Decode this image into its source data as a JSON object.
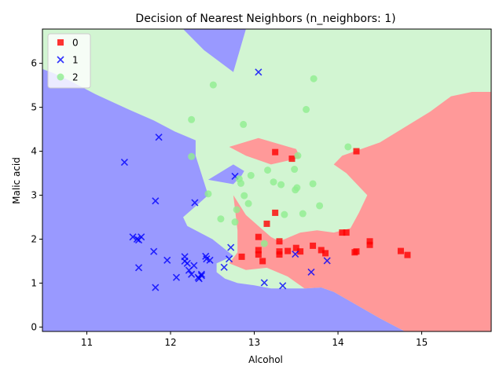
{
  "chart_data": {
    "type": "scatter",
    "title": "Decision of Nearest Neighbors (n_neighbors: 1)",
    "xlabel": "Alcohol",
    "ylabel": "Malic acid",
    "xlim": [
      10.47,
      15.83
    ],
    "ylim": [
      -0.1,
      6.78
    ],
    "x_ticks": [
      "11",
      "12",
      "13",
      "14",
      "15"
    ],
    "x_tick_values": [
      11,
      12,
      13,
      14,
      15
    ],
    "y_ticks": [
      "0",
      "1",
      "2",
      "3",
      "4",
      "5",
      "6"
    ],
    "y_tick_values": [
      0,
      1,
      2,
      3,
      4,
      5,
      6
    ],
    "grid": false,
    "legend": "top-left",
    "region_colors": {
      "0": "#ff9999",
      "1": "#9999ff",
      "2": "#d2f5d2"
    },
    "decision_regions": [
      {
        "class": "1",
        "polygon": [
          [
            10.47,
            -0.1
          ],
          [
            10.47,
            5.87
          ],
          [
            10.6,
            5.78
          ],
          [
            10.8,
            5.6
          ],
          [
            11.1,
            5.3
          ],
          [
            11.5,
            4.95
          ],
          [
            11.8,
            4.7
          ],
          [
            12.05,
            4.45
          ],
          [
            12.3,
            4.25
          ],
          [
            12.3,
            3.9
          ],
          [
            12.45,
            3.0
          ],
          [
            12.15,
            2.5
          ],
          [
            12.2,
            2.3
          ],
          [
            12.5,
            2.0
          ],
          [
            12.75,
            1.62
          ],
          [
            12.55,
            1.45
          ],
          [
            12.55,
            1.25
          ],
          [
            12.65,
            1.1
          ],
          [
            12.8,
            1.0
          ],
          [
            13.0,
            0.95
          ],
          [
            13.2,
            0.88
          ],
          [
            13.6,
            0.88
          ],
          [
            13.8,
            0.9
          ],
          [
            13.95,
            0.8
          ],
          [
            14.5,
            0.2
          ],
          [
            14.8,
            -0.1
          ]
        ]
      },
      {
        "class": "1",
        "polygon": [
          [
            12.15,
            6.78
          ],
          [
            12.9,
            6.78
          ],
          [
            12.75,
            5.8
          ],
          [
            12.4,
            6.3
          ]
        ]
      },
      {
        "class": "1",
        "polygon": [
          [
            12.45,
            3.35
          ],
          [
            12.75,
            3.7
          ],
          [
            12.88,
            3.55
          ],
          [
            12.85,
            3.45
          ],
          [
            12.75,
            3.25
          ]
        ]
      },
      {
        "class": "0",
        "polygon": [
          [
            12.75,
            3.0
          ],
          [
            12.9,
            2.55
          ],
          [
            13.05,
            2.3
          ],
          [
            13.2,
            2.05
          ],
          [
            13.3,
            1.95
          ],
          [
            13.55,
            2.15
          ],
          [
            13.75,
            2.2
          ],
          [
            13.95,
            2.15
          ],
          [
            14.15,
            2.25
          ],
          [
            14.25,
            2.6
          ],
          [
            14.35,
            3.0
          ],
          [
            14.1,
            3.5
          ],
          [
            13.95,
            3.7
          ],
          [
            14.05,
            3.9
          ],
          [
            14.5,
            4.2
          ],
          [
            15.1,
            4.9
          ],
          [
            15.35,
            5.25
          ],
          [
            15.6,
            5.35
          ],
          [
            15.83,
            5.35
          ],
          [
            15.83,
            -0.1
          ],
          [
            14.8,
            -0.1
          ],
          [
            14.5,
            0.2
          ],
          [
            13.95,
            0.8
          ],
          [
            13.8,
            0.9
          ],
          [
            13.6,
            0.88
          ],
          [
            13.4,
            1.15
          ],
          [
            13.15,
            1.35
          ],
          [
            12.9,
            1.3
          ],
          [
            12.7,
            1.45
          ],
          [
            12.8,
            1.7
          ],
          [
            12.8,
            2.2
          ]
        ]
      },
      {
        "class": "0",
        "polygon": [
          [
            12.7,
            4.1
          ],
          [
            13.05,
            4.3
          ],
          [
            13.5,
            4.05
          ],
          [
            13.55,
            3.85
          ],
          [
            13.2,
            3.7
          ],
          [
            12.9,
            3.9
          ]
        ]
      }
    ],
    "series": [
      {
        "name": "0",
        "marker": "square",
        "color": "#ff0000",
        "points": [
          [
            12.85,
            1.6
          ],
          [
            13.05,
            2.05
          ],
          [
            13.1,
            1.5
          ],
          [
            13.05,
            1.65
          ],
          [
            13.05,
            1.75
          ],
          [
            13.15,
            2.35
          ],
          [
            13.25,
            2.6
          ],
          [
            13.25,
            3.98
          ],
          [
            13.3,
            1.65
          ],
          [
            13.3,
            1.72
          ],
          [
            13.3,
            1.95
          ],
          [
            13.4,
            1.73
          ],
          [
            13.45,
            3.83
          ],
          [
            13.5,
            1.8
          ],
          [
            13.55,
            1.72
          ],
          [
            13.7,
            1.85
          ],
          [
            13.8,
            1.75
          ],
          [
            13.85,
            1.68
          ],
          [
            14.05,
            2.15
          ],
          [
            14.1,
            2.15
          ],
          [
            14.2,
            1.7
          ],
          [
            14.22,
            1.72
          ],
          [
            14.22,
            4.0
          ],
          [
            14.38,
            1.95
          ],
          [
            14.38,
            1.87
          ],
          [
            14.75,
            1.73
          ],
          [
            14.83,
            1.64
          ]
        ]
      },
      {
        "name": "1",
        "marker": "x",
        "color": "#0000ff",
        "points": [
          [
            11.45,
            3.75
          ],
          [
            11.55,
            2.05
          ],
          [
            11.6,
            2.0
          ],
          [
            11.62,
            1.35
          ],
          [
            11.62,
            1.98
          ],
          [
            11.65,
            2.05
          ],
          [
            11.8,
            1.72
          ],
          [
            11.82,
            2.87
          ],
          [
            11.82,
            0.9
          ],
          [
            11.86,
            4.32
          ],
          [
            11.96,
            1.52
          ],
          [
            12.07,
            1.13
          ],
          [
            12.17,
            1.6
          ],
          [
            12.17,
            1.5
          ],
          [
            12.2,
            1.45
          ],
          [
            12.22,
            1.29
          ],
          [
            12.25,
            1.2
          ],
          [
            12.28,
            1.4
          ],
          [
            12.29,
            2.83
          ],
          [
            12.33,
            1.13
          ],
          [
            12.34,
            1.1
          ],
          [
            12.37,
            1.2
          ],
          [
            12.37,
            1.17
          ],
          [
            12.42,
            1.61
          ],
          [
            12.43,
            1.55
          ],
          [
            12.47,
            1.52
          ],
          [
            12.64,
            1.36
          ],
          [
            12.7,
            1.55
          ],
          [
            12.72,
            1.81
          ],
          [
            12.77,
            3.43
          ],
          [
            13.05,
            5.8
          ],
          [
            13.12,
            1.01
          ],
          [
            13.34,
            0.94
          ],
          [
            13.49,
            1.66
          ],
          [
            13.68,
            1.25
          ],
          [
            13.87,
            1.51
          ]
        ]
      },
      {
        "name": "2",
        "marker": "circle",
        "color": "#90ee90",
        "points": [
          [
            12.25,
            4.72
          ],
          [
            12.25,
            3.88
          ],
          [
            12.45,
            3.03
          ],
          [
            12.51,
            5.51
          ],
          [
            12.6,
            2.46
          ],
          [
            12.77,
            2.39
          ],
          [
            12.79,
            2.67
          ],
          [
            12.82,
            3.37
          ],
          [
            12.84,
            3.27
          ],
          [
            12.87,
            4.61
          ],
          [
            12.88,
            2.99
          ],
          [
            12.93,
            2.81
          ],
          [
            12.96,
            3.45
          ],
          [
            13.16,
            3.57
          ],
          [
            13.23,
            3.3
          ],
          [
            13.32,
            3.24
          ],
          [
            13.36,
            2.56
          ],
          [
            13.48,
            3.59
          ],
          [
            13.49,
            3.12
          ],
          [
            13.51,
            3.17
          ],
          [
            13.58,
            2.58
          ],
          [
            13.62,
            4.95
          ],
          [
            13.7,
            3.26
          ],
          [
            13.71,
            5.65
          ],
          [
            13.78,
            2.76
          ],
          [
            14.12,
            4.1
          ],
          [
            13.12,
            1.9
          ],
          [
            13.52,
            3.9
          ]
        ]
      }
    ]
  }
}
